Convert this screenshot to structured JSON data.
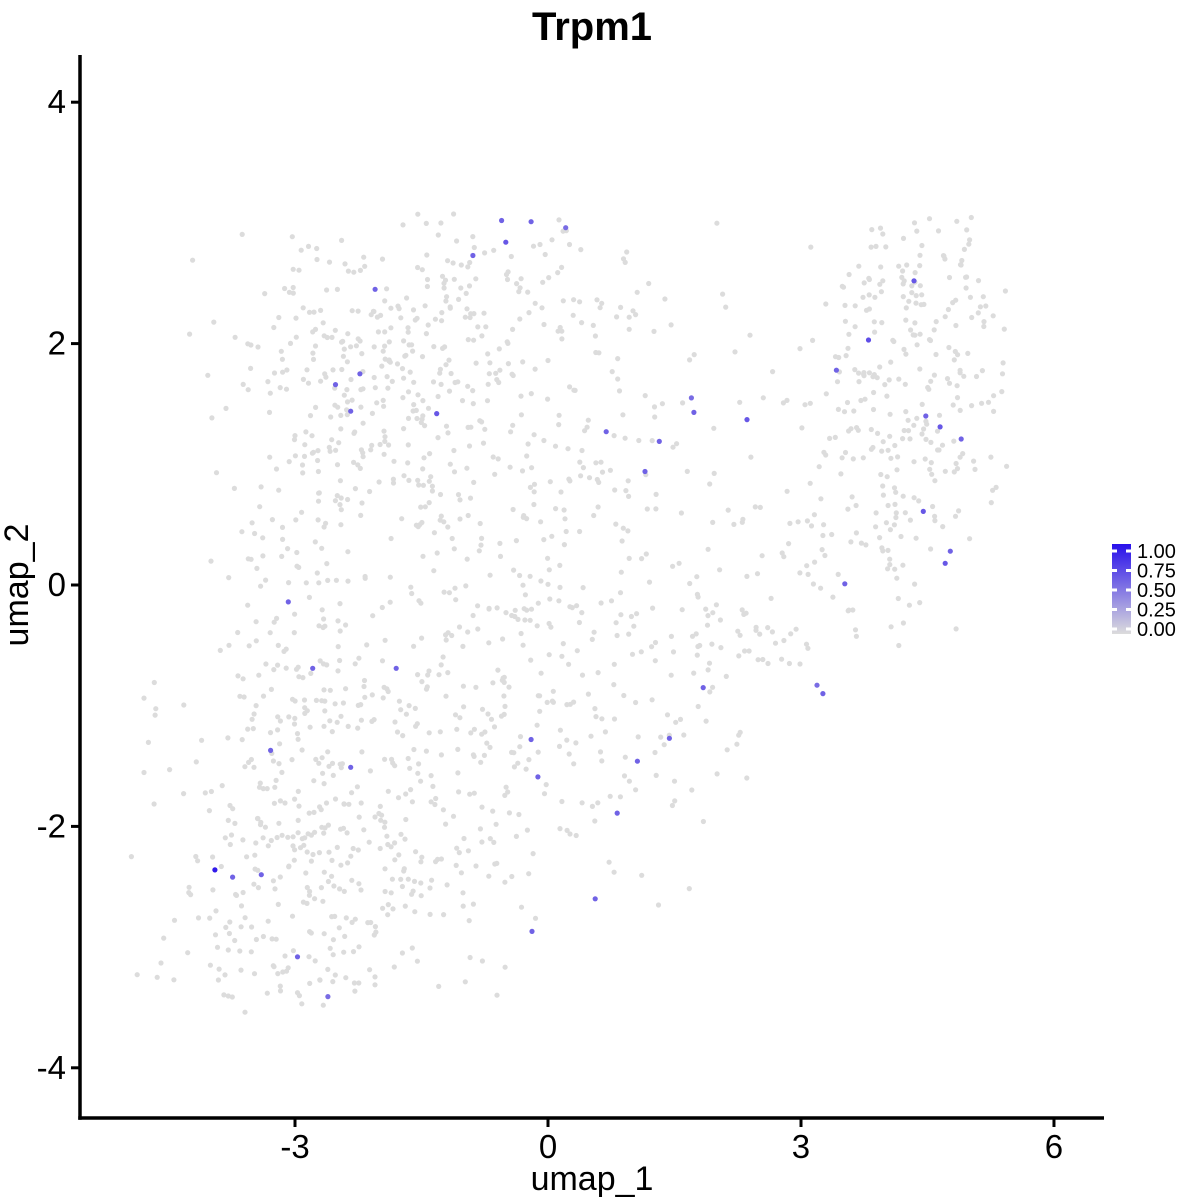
{
  "title": "Trpm1",
  "axes": {
    "x": {
      "label": "umap_1",
      "ticks": [
        -3,
        0,
        3,
        6
      ]
    },
    "y": {
      "label": "umap_2",
      "ticks": [
        4,
        2,
        0,
        -2,
        -4
      ]
    }
  },
  "legend": {
    "tick_labels": [
      "1.00",
      "0.75",
      "0.50",
      "0.25",
      "0.00"
    ],
    "tick_values": [
      1.0,
      0.75,
      0.5,
      0.25,
      0.0
    ],
    "high_color": "#2810EB",
    "low_color": "#DCDCDC"
  },
  "style": {
    "point_radius": 2.6,
    "background_point_color": "#DCDCDC",
    "axis_color": "#000000",
    "panel_background": "#FFFFFF"
  },
  "chart_data": {
    "type": "scatter",
    "title": "Trpm1",
    "xlabel": "umap_1",
    "ylabel": "umap_2",
    "xlim": [
      -5.55,
      6.6
    ],
    "ylim": [
      -4.42,
      4.4
    ],
    "x_ticks": [
      -3,
      0,
      3,
      6
    ],
    "y_ticks": [
      4,
      2,
      0,
      -2,
      -4
    ],
    "grid": false,
    "legend_position": "right",
    "color_scale": {
      "low": "#DCDCDC",
      "high": "#2810EB",
      "domain": [
        0,
        1
      ]
    },
    "expressing_points": [
      {
        "x": -0.55,
        "y": 3.02,
        "value": 0.6
      },
      {
        "x": -0.2,
        "y": 3.01,
        "value": 0.6
      },
      {
        "x": 0.21,
        "y": 2.96,
        "value": 0.55
      },
      {
        "x": -0.5,
        "y": 2.84,
        "value": 0.65
      },
      {
        "x": -0.89,
        "y": 2.73,
        "value": 0.6
      },
      {
        "x": -2.05,
        "y": 2.45,
        "value": 0.6
      },
      {
        "x": -2.23,
        "y": 1.75,
        "value": 0.6
      },
      {
        "x": -2.52,
        "y": 1.66,
        "value": 0.6
      },
      {
        "x": -2.34,
        "y": 1.44,
        "value": 0.6
      },
      {
        "x": -1.32,
        "y": 1.42,
        "value": 0.65
      },
      {
        "x": 0.69,
        "y": 1.27,
        "value": 0.6
      },
      {
        "x": 1.32,
        "y": 1.19,
        "value": 0.6
      },
      {
        "x": 1.7,
        "y": 1.55,
        "value": 0.55
      },
      {
        "x": 1.73,
        "y": 1.43,
        "value": 0.6
      },
      {
        "x": 2.36,
        "y": 1.37,
        "value": 0.65
      },
      {
        "x": 1.15,
        "y": 0.94,
        "value": 0.6
      },
      {
        "x": 4.34,
        "y": 2.52,
        "value": 0.65
      },
      {
        "x": 3.8,
        "y": 2.03,
        "value": 0.7
      },
      {
        "x": 3.42,
        "y": 1.78,
        "value": 0.6
      },
      {
        "x": 4.48,
        "y": 1.4,
        "value": 0.6
      },
      {
        "x": 4.65,
        "y": 1.31,
        "value": 0.65
      },
      {
        "x": 4.9,
        "y": 1.21,
        "value": 0.6
      },
      {
        "x": 4.45,
        "y": 0.61,
        "value": 0.65
      },
      {
        "x": 4.77,
        "y": 0.28,
        "value": 0.6
      },
      {
        "x": 4.71,
        "y": 0.18,
        "value": 0.65
      },
      {
        "x": 3.52,
        "y": 0.01,
        "value": 0.6
      },
      {
        "x": -3.08,
        "y": -0.14,
        "value": 0.6
      },
      {
        "x": -2.79,
        "y": -0.69,
        "value": 0.6
      },
      {
        "x": -1.8,
        "y": -0.69,
        "value": 0.6
      },
      {
        "x": 1.84,
        "y": -0.85,
        "value": 0.6
      },
      {
        "x": 3.19,
        "y": -0.83,
        "value": 0.55
      },
      {
        "x": 3.26,
        "y": -0.9,
        "value": 0.6
      },
      {
        "x": -3.29,
        "y": -1.37,
        "value": 0.6
      },
      {
        "x": -0.2,
        "y": -1.28,
        "value": 0.6
      },
      {
        "x": 1.44,
        "y": -1.27,
        "value": 0.6
      },
      {
        "x": -2.34,
        "y": -1.51,
        "value": 0.6
      },
      {
        "x": -0.12,
        "y": -1.59,
        "value": 0.6
      },
      {
        "x": 1.06,
        "y": -1.46,
        "value": 0.6
      },
      {
        "x": 0.82,
        "y": -1.89,
        "value": 0.6
      },
      {
        "x": -3.95,
        "y": -2.36,
        "value": 0.95
      },
      {
        "x": -3.74,
        "y": -2.42,
        "value": 0.6
      },
      {
        "x": -3.4,
        "y": -2.4,
        "value": 0.6
      },
      {
        "x": 0.56,
        "y": -2.6,
        "value": 0.6
      },
      {
        "x": -2.97,
        "y": -3.08,
        "value": 0.6
      },
      {
        "x": -2.61,
        "y": -3.41,
        "value": 0.55
      },
      {
        "x": -0.19,
        "y": -2.87,
        "value": 0.6
      }
    ],
    "background_points": {
      "description": "non-expressing cells (value 0), drawn from seeded gaussian clusters approximating the UMAP density",
      "seed": 42,
      "bounds": {
        "x": [
          -4.95,
          5.45
        ],
        "y": [
          -3.55,
          3.1
        ]
      },
      "clusters": [
        {
          "cx": -2.7,
          "cy": -2.3,
          "sx": 1.05,
          "sy": 0.72,
          "rho": 0.1,
          "n": 340
        },
        {
          "cx": -3.0,
          "cy": -0.6,
          "sx": 0.55,
          "sy": 0.75,
          "rho": 0.0,
          "n": 130
        },
        {
          "cx": -2.1,
          "cy": 1.5,
          "sx": 0.85,
          "sy": 0.75,
          "rho": 0.15,
          "n": 250
        },
        {
          "cx": -0.5,
          "cy": 2.35,
          "sx": 0.95,
          "sy": 0.42,
          "rho": 0.0,
          "n": 130
        },
        {
          "cx": -0.4,
          "cy": -0.9,
          "sx": 1.05,
          "sy": 0.95,
          "rho": 0.1,
          "n": 270
        },
        {
          "cx": 0.3,
          "cy": 0.9,
          "sx": 0.9,
          "sy": 0.8,
          "rho": 0.2,
          "n": 120
        },
        {
          "cx": 2.2,
          "cy": -0.4,
          "sx": 0.75,
          "sy": 0.65,
          "rho": 0.55,
          "n": 100
        },
        {
          "cx": 4.2,
          "cy": 1.4,
          "sx": 0.7,
          "sy": 0.85,
          "rho": 0.25,
          "n": 260
        },
        {
          "cx": 4.4,
          "cy": 2.55,
          "sx": 0.5,
          "sy": 0.3,
          "rho": 0.0,
          "n": 55
        },
        {
          "cx": -4.72,
          "cy": -1.25,
          "sx": 0.1,
          "sy": 0.3,
          "rho": 0.0,
          "n": 7
        },
        {
          "cx": -2.9,
          "cy": 2.3,
          "sx": 0.5,
          "sy": 0.35,
          "rho": 0.0,
          "n": 35
        }
      ]
    }
  }
}
